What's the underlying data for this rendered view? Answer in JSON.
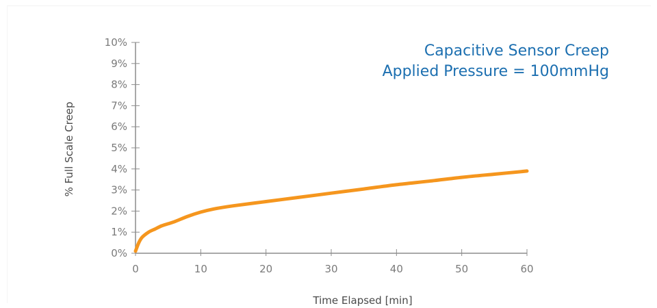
{
  "chart_data": {
    "type": "line",
    "title": "Capacitive Sensor Creep",
    "subtitle": "Applied Pressure = 100mmHg",
    "xlabel": "Time Elapsed [min]",
    "ylabel": "% Full Scale Creep",
    "xlim": [
      0,
      60
    ],
    "ylim": [
      0,
      10
    ],
    "x_ticks": [
      "0",
      "10",
      "20",
      "30",
      "40",
      "50",
      "60"
    ],
    "y_ticks": [
      "0%",
      "1%",
      "2%",
      "3%",
      "4%",
      "5%",
      "6%",
      "7%",
      "8%",
      "9%",
      "10%"
    ],
    "grid": false,
    "series": [
      {
        "color": "#f5961e",
        "x": [
          0,
          0.5,
          1,
          2,
          3,
          4,
          5,
          6,
          8,
          10,
          12,
          15,
          20,
          25,
          30,
          35,
          40,
          45,
          50,
          55,
          60
        ],
        "y": [
          0.1,
          0.5,
          0.75,
          1.0,
          1.15,
          1.3,
          1.4,
          1.5,
          1.75,
          1.95,
          2.1,
          2.25,
          2.45,
          2.65,
          2.85,
          3.05,
          3.25,
          3.42,
          3.6,
          3.75,
          3.9
        ]
      }
    ]
  }
}
